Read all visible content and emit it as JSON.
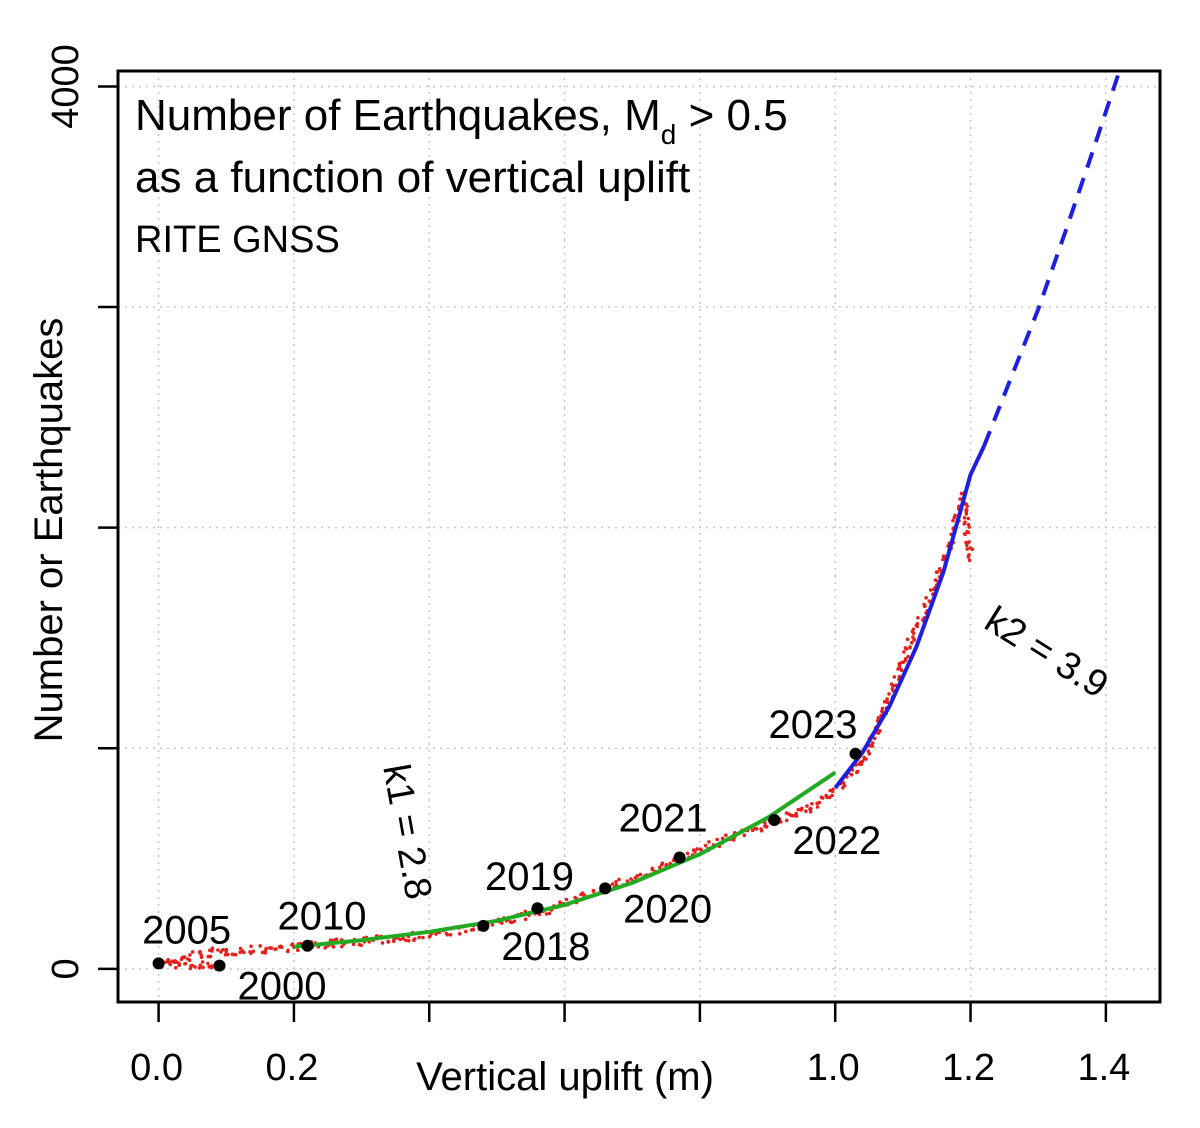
{
  "chart_data": {
    "type": "scatter",
    "title_line1_prefix": "Number of Earthquakes, M",
    "title_subscript": "d",
    "title_line1_suffix": " > 0.5",
    "title_line2": "as a function of vertical uplift",
    "subtitle": "RITE GNSS",
    "xlabel": "Vertical uplift (m)",
    "ylabel": "Number or Earthquakes",
    "xlim": [
      -0.06,
      1.48
    ],
    "ylim": [
      -150,
      4070
    ],
    "x_ticks": [
      0.0,
      0.2,
      0.4,
      0.6,
      0.8,
      1.0,
      1.2,
      1.4
    ],
    "x_tick_labels": [
      "0.0",
      "0.2",
      "",
      "",
      "",
      "1.0",
      "1.2",
      "1.4"
    ],
    "y_ticks": [
      0,
      1000,
      2000,
      3000,
      4000
    ],
    "y_tick_labels": [
      "0",
      "",
      "",
      "",
      "4000"
    ],
    "grid": true,
    "colors": {
      "observed": "#e8201c",
      "fit_k1": "#22aa22",
      "fit_k2": "#1f1fe0",
      "year_point": "#000000"
    },
    "series": [
      {
        "kind": "observed",
        "points": [
          [
            0.09,
            15
          ],
          [
            0.06,
            15
          ],
          [
            0.03,
            18
          ],
          [
            0.01,
            22
          ],
          [
            0.0,
            25
          ],
          [
            0.01,
            30
          ],
          [
            0.03,
            40
          ],
          [
            0.05,
            60
          ],
          [
            0.08,
            75
          ],
          [
            0.12,
            82
          ],
          [
            0.16,
            90
          ],
          [
            0.2,
            100
          ],
          [
            0.22,
            105
          ],
          [
            0.26,
            115
          ],
          [
            0.3,
            125
          ],
          [
            0.34,
            135
          ],
          [
            0.38,
            150
          ],
          [
            0.42,
            165
          ],
          [
            0.46,
            180
          ],
          [
            0.48,
            195
          ],
          [
            0.52,
            225
          ],
          [
            0.56,
            255
          ],
          [
            0.6,
            290
          ],
          [
            0.64,
            345
          ],
          [
            0.68,
            385
          ],
          [
            0.72,
            425
          ],
          [
            0.76,
            480
          ],
          [
            0.8,
            540
          ],
          [
            0.86,
            615
          ],
          [
            0.9,
            655
          ],
          [
            0.94,
            700
          ],
          [
            0.98,
            760
          ],
          [
            1.01,
            835
          ],
          [
            1.03,
            900
          ],
          [
            1.05,
            1000
          ],
          [
            1.07,
            1150
          ],
          [
            1.09,
            1300
          ],
          [
            1.11,
            1480
          ],
          [
            1.13,
            1600
          ],
          [
            1.15,
            1750
          ],
          [
            1.17,
            1930
          ],
          [
            1.18,
            2050
          ],
          [
            1.19,
            2150
          ],
          [
            1.2,
            1850
          ]
        ]
      },
      {
        "kind": "fit",
        "label": "k1 = 2.8",
        "line_style": "solid",
        "points": [
          [
            0.2,
            100
          ],
          [
            0.3,
            130
          ],
          [
            0.4,
            168
          ],
          [
            0.5,
            218
          ],
          [
            0.6,
            290
          ],
          [
            0.7,
            390
          ],
          [
            0.8,
            520
          ],
          [
            0.9,
            685
          ],
          [
            1.0,
            890
          ]
        ]
      },
      {
        "kind": "fit",
        "label": "k2 = 3.9",
        "line_style": "solid",
        "points": [
          [
            1.0,
            820
          ],
          [
            1.04,
            980
          ],
          [
            1.08,
            1190
          ],
          [
            1.12,
            1460
          ],
          [
            1.16,
            1800
          ],
          [
            1.2,
            2240
          ],
          [
            1.22,
            2370
          ]
        ]
      },
      {
        "kind": "extrapolation",
        "line_style": "dashed",
        "points": [
          [
            1.22,
            2370
          ],
          [
            1.26,
            2680
          ],
          [
            1.3,
            2990
          ],
          [
            1.34,
            3340
          ],
          [
            1.38,
            3700
          ],
          [
            1.42,
            4070
          ]
        ]
      }
    ],
    "year_points": [
      {
        "label": "2000",
        "x": 0.09,
        "y": 15,
        "label_side": "below-right"
      },
      {
        "label": "2005",
        "x": 0.0,
        "y": 25,
        "label_side": "above"
      },
      {
        "label": "2010",
        "x": 0.22,
        "y": 105,
        "label_side": "above-right"
      },
      {
        "label": "2018",
        "x": 0.48,
        "y": 195,
        "label_side": "below-right"
      },
      {
        "label": "2019",
        "x": 0.56,
        "y": 275,
        "label_side": "above"
      },
      {
        "label": "2020",
        "x": 0.66,
        "y": 365,
        "label_side": "below-right"
      },
      {
        "label": "2021",
        "x": 0.77,
        "y": 505,
        "label_side": "above-left"
      },
      {
        "label": "2022",
        "x": 0.91,
        "y": 675,
        "label_side": "below-right"
      },
      {
        "label": "2023",
        "x": 1.03,
        "y": 975,
        "label_side": "above-left"
      }
    ]
  }
}
